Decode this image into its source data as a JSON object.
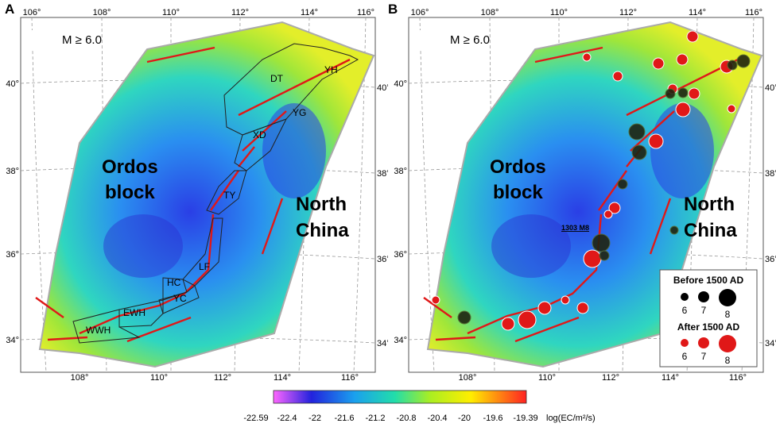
{
  "panel_a": {
    "letter": "A",
    "magnitude_label": "M ≥ 6.0",
    "region_labels": {
      "ordos_1": "Ordos",
      "ordos_2": "block",
      "nc_1": "North",
      "nc_2": "China"
    },
    "lon_ticks": [
      "106°",
      "108°",
      "110°",
      "112°",
      "114°",
      "116°"
    ],
    "lat_ticks": [
      "40°",
      "38°",
      "36°",
      "34°"
    ],
    "zones": [
      "DT",
      "YG",
      "YH",
      "XD",
      "TY",
      "LF",
      "HC",
      "YC",
      "EWH",
      "WWH"
    ]
  },
  "panel_b": {
    "letter": "B",
    "magnitude_label": "M ≥ 6.0",
    "region_labels": {
      "ordos_1": "Ordos",
      "ordos_2": "block",
      "nc_1": "North",
      "nc_2": "China"
    },
    "lon_ticks": [
      "106°",
      "108°",
      "110°",
      "112°",
      "114°",
      "116°"
    ],
    "lat_ticks": [
      "40°",
      "38°",
      "36°",
      "34°"
    ],
    "event_label": "1303 M8",
    "legend": {
      "before_title": "Before 1500 AD",
      "after_title": "After 1500 AD",
      "sizes": [
        "6",
        "7",
        "8"
      ],
      "before_color": "#000000",
      "after_color": "#e01818"
    }
  },
  "colorbar": {
    "ticks": [
      "-22.59",
      "-22.4",
      "-22",
      "-21.6",
      "-21.2",
      "-20.8",
      "-20.4",
      "-20",
      "-19.6",
      "-19.39"
    ],
    "unit": "log(EC/m²/s)",
    "colors": [
      "#ff66ff",
      "#2222dd",
      "#1aa0ee",
      "#22ddaa",
      "#aaee22",
      "#ffee00",
      "#ff2222"
    ]
  }
}
